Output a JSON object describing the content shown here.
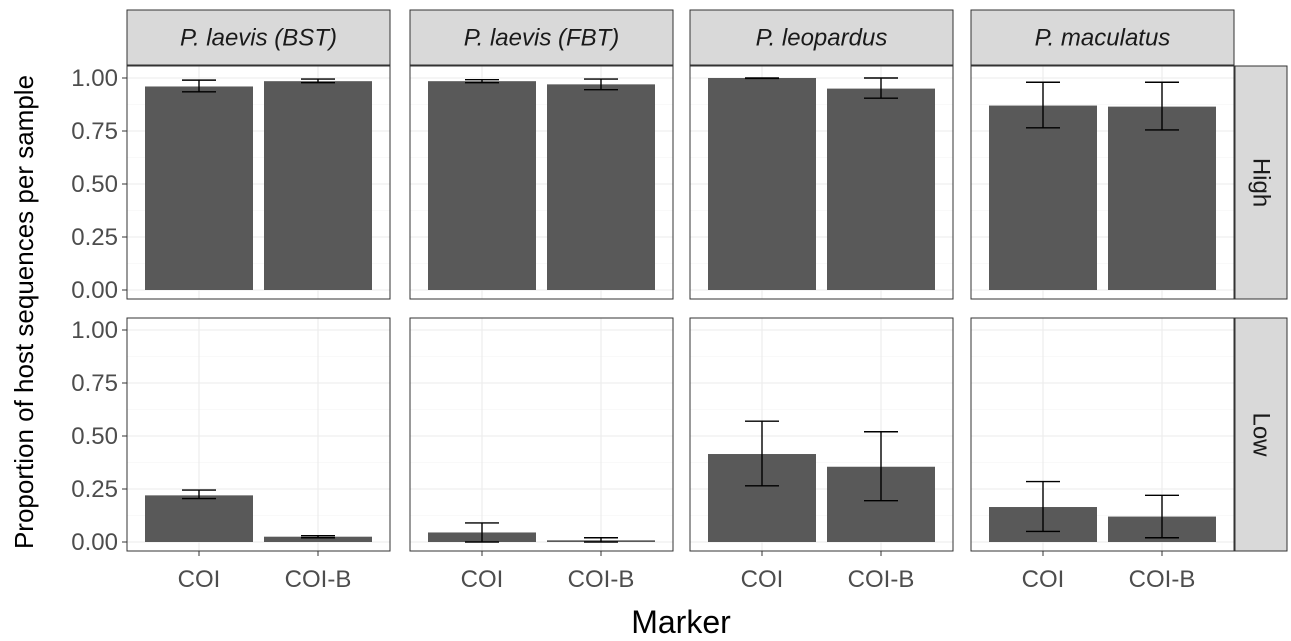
{
  "chart_data": {
    "type": "bar",
    "xlabel": "Marker",
    "ylabel": "Proportion of host sequences per sample",
    "ylim": [
      0,
      1.05
    ],
    "yticks": [
      0,
      0.25,
      0.5,
      0.75,
      1.0
    ],
    "ytick_labels": [
      "0.00",
      "0.25",
      "0.50",
      "0.75",
      "1.00"
    ],
    "categories": [
      "COI",
      "COI-B"
    ],
    "facet_columns": [
      "P. laevis (BST)",
      "P. laevis (FBT)",
      "P. leopardus",
      "P. maculatus"
    ],
    "facet_rows": [
      "High",
      "Low"
    ],
    "grid": true,
    "bar_color": "#595959",
    "panels": [
      {
        "row": "High",
        "col": "P. laevis (BST)",
        "values": [
          0.96,
          0.985
        ],
        "err_low": [
          0.935,
          0.978
        ],
        "err_high": [
          0.99,
          0.995
        ]
      },
      {
        "row": "High",
        "col": "P. laevis (FBT)",
        "values": [
          0.985,
          0.97
        ],
        "err_low": [
          0.978,
          0.945
        ],
        "err_high": [
          0.992,
          0.995
        ]
      },
      {
        "row": "High",
        "col": "P. leopardus",
        "values": [
          1.0,
          0.95
        ],
        "err_low": [
          0.998,
          0.905
        ],
        "err_high": [
          1.0,
          1.0
        ]
      },
      {
        "row": "High",
        "col": "P. maculatus",
        "values": [
          0.87,
          0.865
        ],
        "err_low": [
          0.765,
          0.755
        ],
        "err_high": [
          0.98,
          0.98
        ]
      },
      {
        "row": "Low",
        "col": "P. laevis (BST)",
        "values": [
          0.22,
          0.025
        ],
        "err_low": [
          0.205,
          0.02
        ],
        "err_high": [
          0.245,
          0.03
        ]
      },
      {
        "row": "Low",
        "col": "P. laevis (FBT)",
        "values": [
          0.045,
          0.008
        ],
        "err_low": [
          0.0,
          0.0
        ],
        "err_high": [
          0.09,
          0.02
        ]
      },
      {
        "row": "Low",
        "col": "P. leopardus",
        "values": [
          0.415,
          0.355
        ],
        "err_low": [
          0.265,
          0.195
        ],
        "err_high": [
          0.57,
          0.52
        ]
      },
      {
        "row": "Low",
        "col": "P. maculatus",
        "values": [
          0.165,
          0.12
        ],
        "err_low": [
          0.05,
          0.02
        ],
        "err_high": [
          0.285,
          0.22
        ]
      }
    ]
  }
}
